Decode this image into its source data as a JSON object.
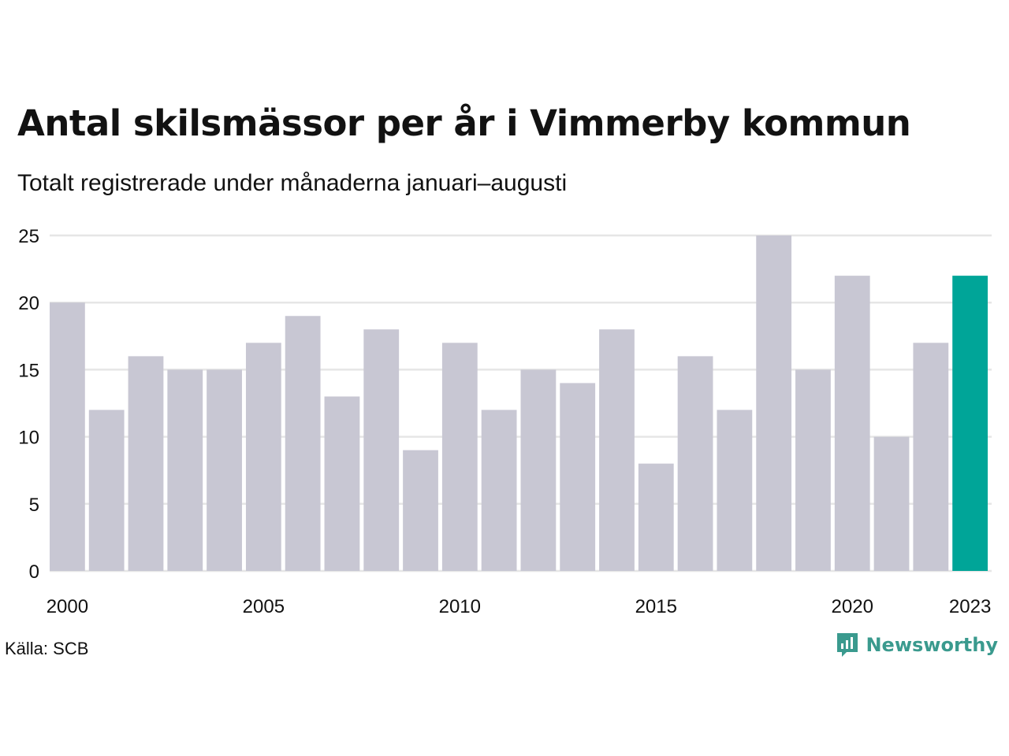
{
  "header": {
    "title": "Antal skilsmässor per år i Vimmerby kommun",
    "subtitle": "Totalt registrerade under månaderna januari–augusti"
  },
  "footer": {
    "source": "Källa: SCB",
    "brand": "Newsworthy",
    "brand_icon": "newsworthy-chart-bubble-icon"
  },
  "colors": {
    "bar": "#c8c7d3",
    "highlight": "#00a598",
    "grid": "#e6e6e6",
    "brand": "#3a9a8e",
    "text": "#111111"
  },
  "chart_data": {
    "type": "bar",
    "categories": [
      "2000",
      "2001",
      "2002",
      "2003",
      "2004",
      "2005",
      "2006",
      "2007",
      "2008",
      "2009",
      "2010",
      "2011",
      "2012",
      "2013",
      "2014",
      "2015",
      "2016",
      "2017",
      "2018",
      "2019",
      "2020",
      "2021",
      "2022",
      "2023"
    ],
    "values": [
      20,
      12,
      16,
      15,
      15,
      17,
      19,
      13,
      18,
      9,
      17,
      12,
      15,
      14,
      18,
      8,
      16,
      12,
      25,
      15,
      22,
      10,
      17,
      22
    ],
    "highlight_category": "2023",
    "x_tick_labels": [
      "2000",
      "2005",
      "2010",
      "2015",
      "2020",
      "2023"
    ],
    "y_ticks": [
      0,
      5,
      10,
      15,
      20,
      25
    ],
    "ylim": [
      0,
      25
    ],
    "grid": true,
    "xlabel": "",
    "ylabel": ""
  }
}
